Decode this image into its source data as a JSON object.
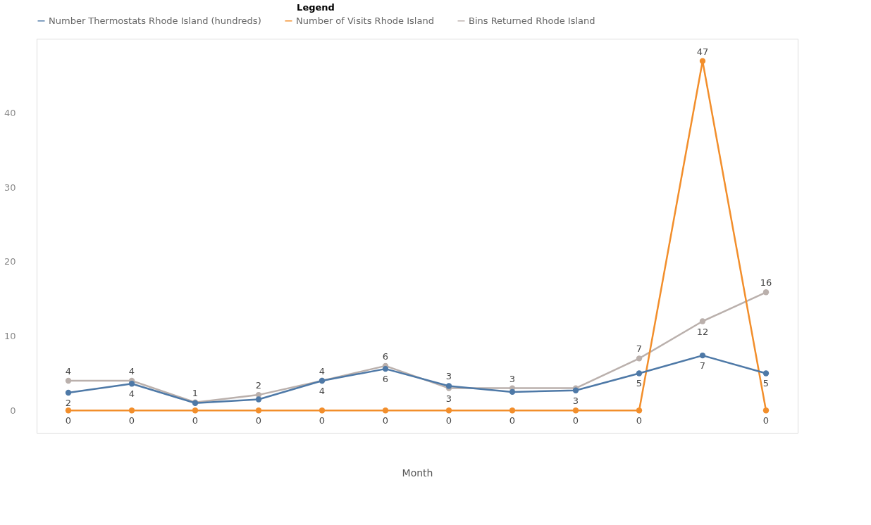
{
  "chart_data": {
    "type": "line",
    "legend_title": "Legend",
    "xlabel": "Month",
    "categories": [
      null,
      null,
      null,
      null,
      null,
      null,
      null,
      null,
      null,
      null,
      null,
      null
    ],
    "series": [
      {
        "name": "Number Thermostats Rhode Island (hundreds)",
        "color": "#4e79a7",
        "values": [
          2.4,
          3.6,
          1,
          1.5,
          4,
          5.6,
          3.3,
          2.5,
          2.7,
          5,
          7.4,
          5
        ],
        "value_labels": [
          "2",
          "4",
          null,
          null,
          "4",
          "6",
          "3",
          null,
          "3",
          "5",
          "7",
          "5"
        ]
      },
      {
        "name": "Number of Visits Rhode Island",
        "color": "#f28e2b",
        "values": [
          0,
          0,
          0,
          0,
          0,
          0,
          0,
          0,
          0,
          0,
          47,
          0
        ],
        "value_labels": [
          "0",
          "0",
          "0",
          "0",
          "0",
          "0",
          "0",
          "0",
          "0",
          "0",
          "47",
          "0"
        ]
      },
      {
        "name": "Bins Returned Rhode Island",
        "color": "#bab0ac",
        "values": [
          4,
          4,
          1.1,
          2.1,
          4,
          6,
          3,
          3,
          3,
          7,
          12,
          15.9
        ],
        "value_labels": [
          "4",
          "4",
          "1",
          "2",
          "4",
          "6",
          "3",
          "3",
          null,
          "7",
          "12",
          "16"
        ]
      }
    ],
    "ylim": [
      -3,
      50
    ],
    "yticks": [
      0,
      10,
      20,
      30,
      40
    ],
    "grid": false,
    "legend": "top",
    "marker": "circle",
    "line_style": "solid"
  }
}
